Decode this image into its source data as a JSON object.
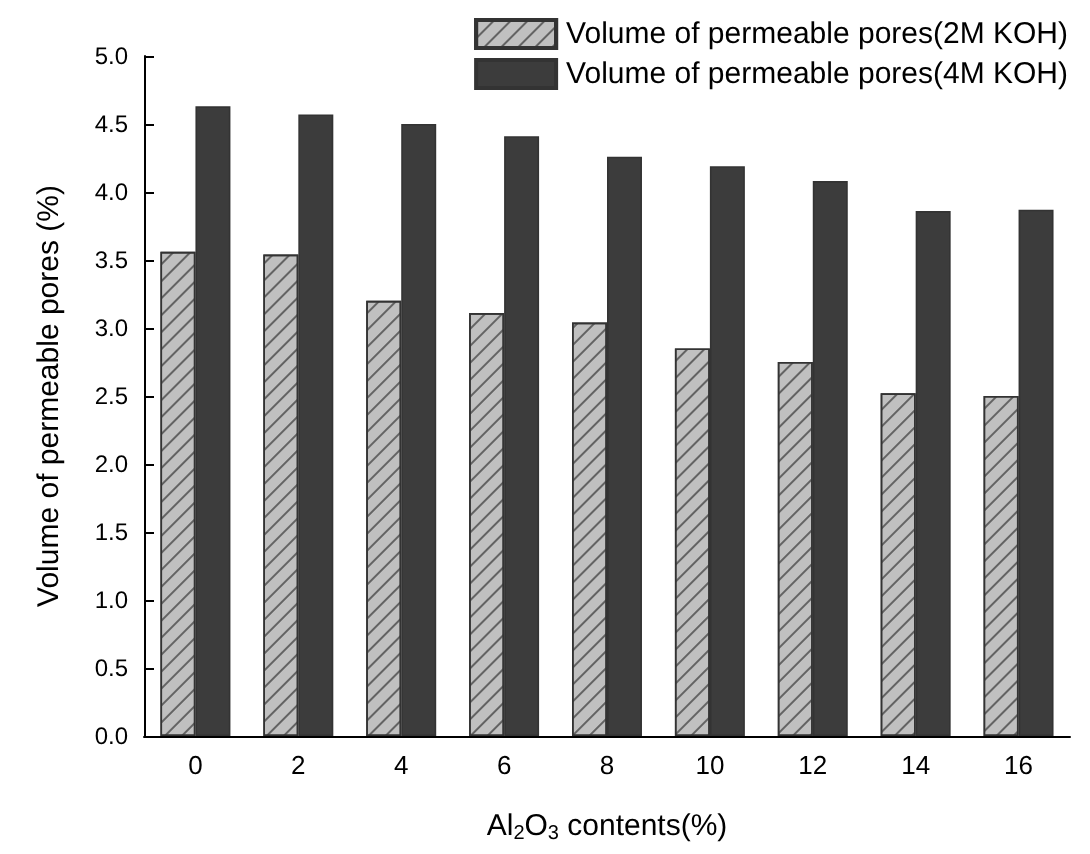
{
  "chart_data": {
    "type": "bar",
    "xlabel": "Al$_{2}$O$_{3}$ contents(%)",
    "ylabel": "Volume of permeable pores (%)",
    "categories": [
      "0",
      "2",
      "4",
      "6",
      "8",
      "10",
      "12",
      "14",
      "16"
    ],
    "series": [
      {
        "name": "Volume of permeable pores(2M KOH)",
        "color": "#c0c0c0",
        "values": [
          3.56,
          3.54,
          3.2,
          3.11,
          3.04,
          2.85,
          2.75,
          2.52,
          2.5
        ]
      },
      {
        "name": "Volume of permeable pores(4M KOH)",
        "color": "#3c3c3c",
        "values": [
          4.63,
          4.57,
          4.5,
          4.41,
          4.26,
          4.19,
          4.08,
          3.86,
          3.87
        ]
      }
    ],
    "ylim": [
      0,
      5
    ],
    "yticks": [
      {
        "value": 0,
        "label": "0.0"
      },
      0.5,
      {
        "value": 1,
        "label": "1.0"
      },
      1.5,
      {
        "value": 2,
        "label": "2.0"
      },
      2.5,
      {
        "value": 3,
        "label": "3.0"
      },
      3.5,
      {
        "value": 4,
        "label": "4.0"
      },
      4.5,
      {
        "value": 5,
        "label": "5.0"
      }
    ],
    "grid": false,
    "legend": "top right"
  }
}
